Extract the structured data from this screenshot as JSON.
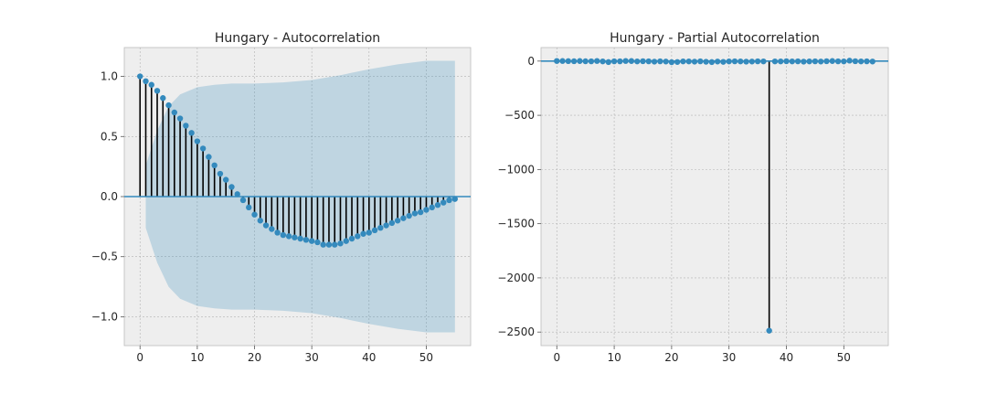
{
  "chart_data": [
    {
      "type": "stem",
      "title": "Hungary - Autocorrelation",
      "xlabel": "",
      "ylabel": "",
      "xlim": [
        -2.75,
        57.75
      ],
      "ylim": [
        -1.24,
        1.24
      ],
      "xticks": [
        0,
        10,
        20,
        30,
        40,
        50
      ],
      "yticks": [
        -1.0,
        -0.5,
        0.0,
        0.5,
        1.0
      ],
      "xtick_labels": [
        "0",
        "10",
        "20",
        "30",
        "40",
        "50"
      ],
      "ytick_labels": [
        "−1.0",
        "−0.5",
        "0.0",
        "0.5",
        "1.0"
      ],
      "grid": true,
      "lags": [
        0,
        1,
        2,
        3,
        4,
        5,
        6,
        7,
        8,
        9,
        10,
        11,
        12,
        13,
        14,
        15,
        16,
        17,
        18,
        19,
        20,
        21,
        22,
        23,
        24,
        25,
        26,
        27,
        28,
        29,
        30,
        31,
        32,
        33,
        34,
        35,
        36,
        37,
        38,
        39,
        40,
        41,
        42,
        43,
        44,
        45,
        46,
        47,
        48,
        49,
        50,
        51,
        52,
        53,
        54,
        55
      ],
      "values": [
        1.0,
        0.96,
        0.93,
        0.88,
        0.82,
        0.76,
        0.7,
        0.65,
        0.59,
        0.53,
        0.46,
        0.4,
        0.33,
        0.26,
        0.19,
        0.14,
        0.08,
        0.02,
        -0.03,
        -0.09,
        -0.15,
        -0.2,
        -0.24,
        -0.27,
        -0.3,
        -0.32,
        -0.33,
        -0.34,
        -0.35,
        -0.36,
        -0.37,
        -0.38,
        -0.4,
        -0.4,
        -0.4,
        -0.39,
        -0.37,
        -0.35,
        -0.33,
        -0.31,
        -0.3,
        -0.28,
        -0.26,
        -0.24,
        -0.22,
        -0.2,
        -0.18,
        -0.16,
        -0.14,
        -0.13,
        -0.11,
        -0.09,
        -0.07,
        -0.05,
        -0.03,
        -0.02
      ],
      "confidence_band": {
        "lags": [
          1,
          3,
          5,
          7,
          10,
          13,
          16,
          20,
          25,
          30,
          35,
          40,
          45,
          50,
          55
        ],
        "upper": [
          0.26,
          0.55,
          0.75,
          0.85,
          0.91,
          0.93,
          0.94,
          0.94,
          0.95,
          0.97,
          1.01,
          1.06,
          1.1,
          1.13,
          1.13
        ],
        "lower": [
          -0.26,
          -0.55,
          -0.75,
          -0.85,
          -0.91,
          -0.93,
          -0.94,
          -0.94,
          -0.95,
          -0.97,
          -1.01,
          -1.06,
          -1.1,
          -1.13,
          -1.13
        ]
      },
      "colors": {
        "marker": "#348ABD",
        "stem": "#000000",
        "band": "#348ABD",
        "axes_bg": "#EEEEEE",
        "zero_line": "#348ABD"
      }
    },
    {
      "type": "stem",
      "title": "Hungary - Partial Autocorrelation",
      "xlabel": "",
      "ylabel": "",
      "xlim": [
        -2.75,
        57.75
      ],
      "ylim": [
        -2625,
        125
      ],
      "xticks": [
        0,
        10,
        20,
        30,
        40,
        50
      ],
      "yticks": [
        -2500,
        -2000,
        -1500,
        -1000,
        -500,
        0
      ],
      "xtick_labels": [
        "0",
        "10",
        "20",
        "30",
        "40",
        "50"
      ],
      "ytick_labels": [
        "−2500",
        "−2000",
        "−1500",
        "−1000",
        "−500",
        "0"
      ],
      "grid": true,
      "lags": [
        0,
        1,
        2,
        3,
        4,
        5,
        6,
        7,
        8,
        9,
        10,
        11,
        12,
        13,
        14,
        15,
        16,
        17,
        18,
        19,
        20,
        21,
        22,
        23,
        24,
        25,
        26,
        27,
        28,
        29,
        30,
        31,
        32,
        33,
        34,
        35,
        36,
        37,
        38,
        39,
        40,
        41,
        42,
        43,
        44,
        45,
        46,
        47,
        48,
        49,
        50,
        51,
        52,
        53,
        54,
        55
      ],
      "values": [
        1,
        0.9,
        -0.3,
        -1.2,
        0.5,
        -1.5,
        -2,
        1,
        -3,
        -9,
        -2,
        -2,
        1,
        0.5,
        -3,
        -1,
        -2,
        -5,
        -2,
        -4,
        -10,
        -8,
        -3,
        -3,
        -5,
        -2,
        -6,
        -9,
        -4,
        -7,
        -3,
        -2,
        -3,
        -5,
        -4,
        -2,
        -3,
        -2487,
        -3,
        -3,
        -1,
        -3,
        -2,
        -5,
        -3,
        -2,
        -4,
        -1,
        0.5,
        -2,
        -3,
        4,
        -1,
        -3,
        -2,
        -4
      ],
      "colors": {
        "marker": "#348ABD",
        "stem": "#000000",
        "axes_bg": "#EEEEEE",
        "zero_line": "#348ABD"
      }
    }
  ]
}
